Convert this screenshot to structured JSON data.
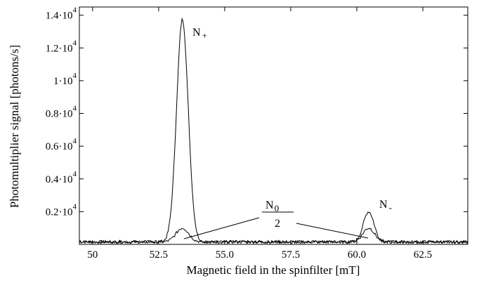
{
  "chart_data": {
    "type": "line",
    "title": "",
    "xlabel": "Magnetic field in the spinfilter [mT]",
    "ylabel": "Photomultiplier signal [photons/s]",
    "xlim": [
      49.5,
      64.2
    ],
    "ylim": [
      0,
      14500
    ],
    "grid": false,
    "x_ticks": [
      {
        "value": 50.0,
        "label": "50"
      },
      {
        "value": 52.5,
        "label": "52.5"
      },
      {
        "value": 55.0,
        "label": "55.0"
      },
      {
        "value": 57.5,
        "label": "57.5"
      },
      {
        "value": 60.0,
        "label": "60.0"
      },
      {
        "value": 62.5,
        "label": "62.5"
      }
    ],
    "y_ticks": [
      {
        "value": 2000,
        "mant": "0.2",
        "exp": "4"
      },
      {
        "value": 4000,
        "mant": "0.4",
        "exp": "4"
      },
      {
        "value": 6000,
        "mant": "0.6",
        "exp": "4"
      },
      {
        "value": 8000,
        "mant": "0.8",
        "exp": "4"
      },
      {
        "value": 10000,
        "mant": "1",
        "exp": "4"
      },
      {
        "value": 12000,
        "mant": "1.2",
        "exp": "4"
      },
      {
        "value": 14000,
        "mant": "1.4",
        "exp": "4"
      }
    ],
    "y_tick_base": "10",
    "series": [
      {
        "label_main": "N",
        "label_sub": "+",
        "peaks": [
          {
            "center": 53.4,
            "height": 13600,
            "width": 0.22
          },
          {
            "center": 60.45,
            "height": 1850,
            "width": 0.2
          }
        ],
        "baseline": 150
      },
      {
        "label_main": "N",
        "label_sub": "0",
        "label_denominator": "2",
        "peaks": [
          {
            "center": 53.4,
            "height": 850,
            "width": 0.24
          },
          {
            "center": 60.45,
            "height": 850,
            "width": 0.22
          }
        ],
        "baseline": 150
      }
    ],
    "annotations": {
      "n_plus": {
        "main": "N",
        "sub": "+"
      },
      "n_minus": {
        "main": "N",
        "sub": "-"
      },
      "n_zero_half": {
        "main": "N",
        "sub": "0",
        "denominator": "2"
      }
    }
  }
}
